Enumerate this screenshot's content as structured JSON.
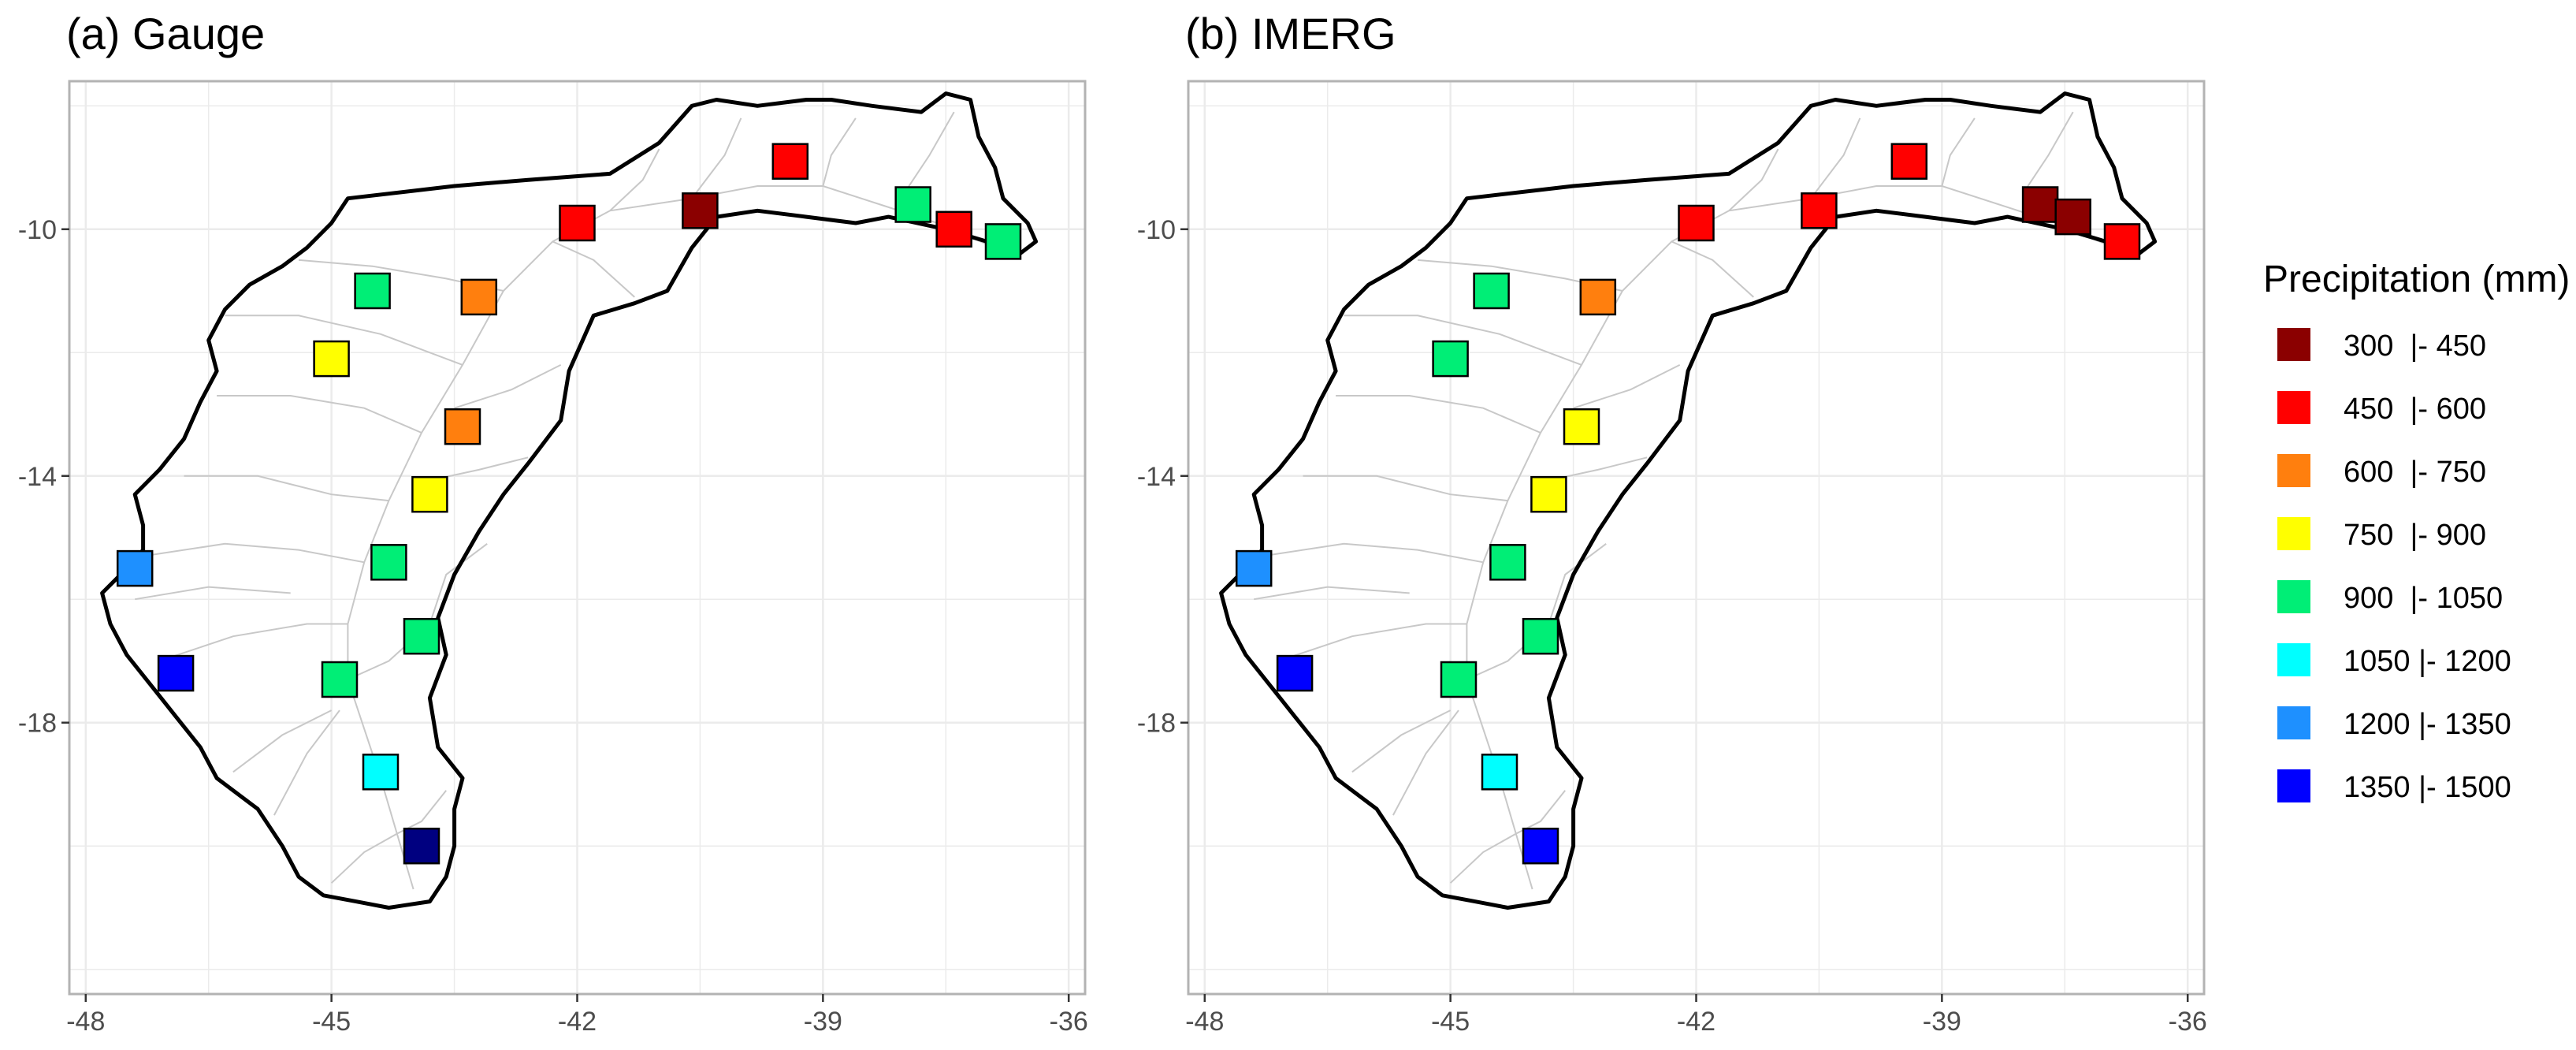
{
  "panels": [
    {
      "title": "(a) Gauge",
      "stations": [
        {
          "lon": -39.4,
          "lat": -8.9,
          "cls": 1
        },
        {
          "lon": -37.9,
          "lat": -9.6,
          "cls": 4
        },
        {
          "lon": -37.4,
          "lat": -10.0,
          "cls": 1
        },
        {
          "lon": -36.8,
          "lat": -10.2,
          "cls": 4
        },
        {
          "lon": -40.5,
          "lat": -9.7,
          "cls": 0
        },
        {
          "lon": -42.0,
          "lat": -9.9,
          "cls": 1
        },
        {
          "lon": -44.5,
          "lat": -11.0,
          "cls": 4
        },
        {
          "lon": -43.2,
          "lat": -11.1,
          "cls": 2
        },
        {
          "lon": -45.0,
          "lat": -12.1,
          "cls": 3
        },
        {
          "lon": -43.4,
          "lat": -13.2,
          "cls": 2
        },
        {
          "lon": -43.8,
          "lat": -14.3,
          "cls": 3
        },
        {
          "lon": -44.3,
          "lat": -15.4,
          "cls": 4
        },
        {
          "lon": -43.9,
          "lat": -16.6,
          "cls": 4
        },
        {
          "lon": -47.4,
          "lat": -15.5,
          "cls": 6
        },
        {
          "lon": -46.9,
          "lat": -17.2,
          "cls": 7
        },
        {
          "lon": -44.9,
          "lat": -17.3,
          "cls": 4
        },
        {
          "lon": -44.4,
          "lat": -18.8,
          "cls": 5
        },
        {
          "lon": -43.9,
          "lat": -20.0,
          "cls": 8
        }
      ]
    },
    {
      "title": "(b) IMERG",
      "stations": [
        {
          "lon": -39.4,
          "lat": -8.9,
          "cls": 1
        },
        {
          "lon": -37.8,
          "lat": -9.6,
          "cls": 0
        },
        {
          "lon": -37.4,
          "lat": -9.8,
          "cls": 0
        },
        {
          "lon": -36.8,
          "lat": -10.2,
          "cls": 1
        },
        {
          "lon": -40.5,
          "lat": -9.7,
          "cls": 1
        },
        {
          "lon": -42.0,
          "lat": -9.9,
          "cls": 1
        },
        {
          "lon": -44.5,
          "lat": -11.0,
          "cls": 4
        },
        {
          "lon": -43.2,
          "lat": -11.1,
          "cls": 2
        },
        {
          "lon": -45.0,
          "lat": -12.1,
          "cls": 4
        },
        {
          "lon": -43.4,
          "lat": -13.2,
          "cls": 3
        },
        {
          "lon": -43.8,
          "lat": -14.3,
          "cls": 3
        },
        {
          "lon": -44.3,
          "lat": -15.4,
          "cls": 4
        },
        {
          "lon": -43.9,
          "lat": -16.6,
          "cls": 4
        },
        {
          "lon": -47.4,
          "lat": -15.5,
          "cls": 6
        },
        {
          "lon": -46.9,
          "lat": -17.2,
          "cls": 7
        },
        {
          "lon": -44.9,
          "lat": -17.3,
          "cls": 4
        },
        {
          "lon": -44.4,
          "lat": -18.8,
          "cls": 5
        },
        {
          "lon": -43.9,
          "lat": -20.0,
          "cls": 7
        }
      ]
    }
  ],
  "axes": {
    "x_ticks": [
      -48,
      -45,
      -42,
      -39,
      -36
    ],
    "x_tick_labels": [
      "-48",
      "-45",
      "-42",
      "-39",
      "-36"
    ],
    "y_ticks": [
      -10,
      -14,
      -18
    ],
    "y_tick_labels": [
      "-10",
      "-14",
      "-18"
    ],
    "xlim": [
      -48.2,
      -35.8
    ],
    "ylim": [
      -22.4,
      -7.6
    ]
  },
  "legend": {
    "title": "Precipitation (mm)",
    "items": [
      {
        "label": "300  |- 450",
        "color": "#8b0000"
      },
      {
        "label": "450  |- 600",
        "color": "#ff0000"
      },
      {
        "label": "600  |- 750",
        "color": "#ff7f0e"
      },
      {
        "label": "750  |- 900",
        "color": "#ffff00"
      },
      {
        "label": "900  |- 1050",
        "color": "#00ee76"
      },
      {
        "label": "1050 |- 1200",
        "color": "#00ffff"
      },
      {
        "label": "1200 |- 1350",
        "color": "#1e90ff"
      },
      {
        "label": "1350 |- 1500",
        "color": "#0000ff"
      }
    ]
  },
  "colors": {
    "extra_dark_blue": "#000080",
    "basin_outline": "#000000",
    "river": "#c8c8c8",
    "grid": "#ebebeb",
    "panel_border": "#b3b3b3"
  }
}
